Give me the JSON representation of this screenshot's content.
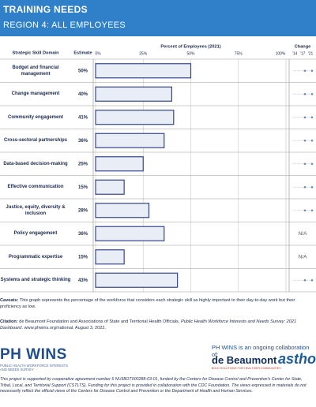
{
  "header": {
    "title": "TRAINING NEEDS",
    "subtitle": "REGION 4: ALL EMPLOYEES"
  },
  "chart_data": {
    "type": "bar",
    "orientation": "horizontal",
    "domain_header": "Strategic Skill Domain",
    "estimate_header": "Estimate",
    "x_label": "Percent of Employees (2021)",
    "change_header": "Change",
    "change_years": [
      "'14",
      "'17",
      "'21"
    ],
    "categories": [
      "Budget and financial management",
      "Change management",
      "Community engagement",
      "Cross-sectoral partnerships",
      "Data-based decision-making",
      "Effective communication",
      "Justice, equity, diversity & inclusion",
      "Policy engagement",
      "Programmatic expertise",
      "Systems and strategic thinking"
    ],
    "values": [
      50,
      40,
      41,
      36,
      25,
      15,
      28,
      36,
      15,
      43
    ],
    "value_labels": [
      "50%",
      "40%",
      "41%",
      "36%",
      "25%",
      "15%",
      "28%",
      "36%",
      "15%",
      "43%"
    ],
    "change_notes": [
      null,
      null,
      null,
      null,
      null,
      null,
      null,
      "N/A",
      "N/A",
      null
    ],
    "xlim": [
      0,
      100
    ],
    "xticks": [
      {
        "value": 0,
        "label": "0%"
      },
      {
        "value": 25,
        "label": "25%"
      },
      {
        "value": 50,
        "label": "50%"
      },
      {
        "value": 75,
        "label": "75%"
      },
      {
        "value": 100,
        "label": "100%"
      }
    ],
    "color": "#e9edf5",
    "edge_color": "#34468a",
    "grid": true
  },
  "caveats": {
    "label": "Caveats:",
    "text": "This graph represents the percentage of the workforce that considers each strategic skill as highly important to their day-to-day work but their proficiency as low."
  },
  "citation": {
    "label": "Citation:",
    "text_before": "de Beaumont Foundation and Associations of State and Territorial Health Officials, ",
    "title": "Public Health Workforce Interests and Needs Survey: 2021 Dashboard",
    "text_after": ". www.phwins.org/national. August 3, 2022."
  },
  "footer": {
    "logo": "PH WINS",
    "logo_tagline": "PUBLIC HEALTH WORKFORCE INTERESTS AND NEEDS SURVEY",
    "collab": "PH WINS is an ongoing collaboration of:",
    "partner1": "de Beaumont",
    "partner1_tagline": "BOLD SOLUTIONS FOR HEALTHIER COMMUNITIES",
    "partner2": "astho",
    "funding": "This project is supported by cooperative agreement number 6 NU38OT000288-03-01, funded by the Centers for Disease Control and Prevention's Center for State, Tribal, Local, and Territorial Support (CSTLTS). Funding for this project is provided in collaboration with the CDC Foundation. The views expressed in materials do not necessarily reflect the official views of the Centers for Disease Control and Prevention or the Department of Health and Human Services."
  }
}
